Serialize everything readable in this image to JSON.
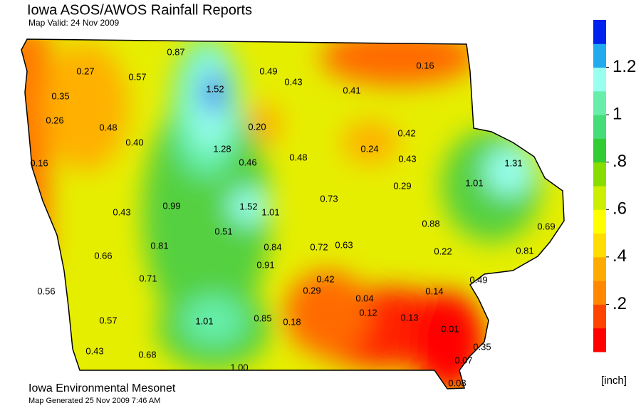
{
  "title": "Iowa ASOS/AWOS Rainfall Reports",
  "subtitle": "Map Valid: 24 Nov 2009",
  "footer": "Iowa Environmental Mesonet",
  "generated": "Map Generated 25 Nov 2009 7:46 AM",
  "stations": [
    0.87,
    0.27,
    0.57,
    1.52,
    0.49,
    0.43,
    0.16,
    0.35,
    0.41,
    0.26,
    0.48,
    {
      "value": 0.2,
      "label": "0.20"
    },
    {
      "value": 0.4,
      "label": "0.40"
    },
    0.42,
    1.28,
    0.24,
    0.16,
    0.46,
    0.48,
    0.43,
    1.31,
    1.01,
    0.29,
    0.73,
    0.99,
    1.52,
    1.01,
    0.43,
    0.88,
    0.69,
    0.51,
    0.81,
    0.84,
    0.72,
    0.63,
    0.22,
    0.81,
    0.66,
    0.91,
    0.71,
    0.42,
    0.49,
    0.56,
    0.29,
    0.04,
    0.14,
    0.12,
    0.13,
    0.57,
    1.01,
    0.85,
    0.18,
    0.01,
    0.35,
    0.43,
    0.68,
    0.07,
    {
      "value": 1,
      "label": "1.00"
    },
    0.08
  ],
  "colorbar": {
    "unit": "[inch]",
    "lim": [
      0,
      1.4
    ],
    "ticks": [
      {
        "value": 0.2,
        "label": ".2"
      },
      {
        "value": 0.4,
        "label": ".4"
      },
      {
        "value": 0.6,
        "label": ".6"
      },
      {
        "value": 0.8,
        "label": ".8"
      },
      1,
      1.2
    ],
    "colors": [
      "#ff0000",
      "#ff4400",
      "#ff8800",
      "#ffaa00",
      "#ffdd00",
      "#ffff00",
      "#ccee00",
      "#88dd00",
      "#33cc33",
      "#44dd77",
      "#66eeaa",
      "#99ffee",
      "#22aaee",
      "#0022ee"
    ]
  }
}
